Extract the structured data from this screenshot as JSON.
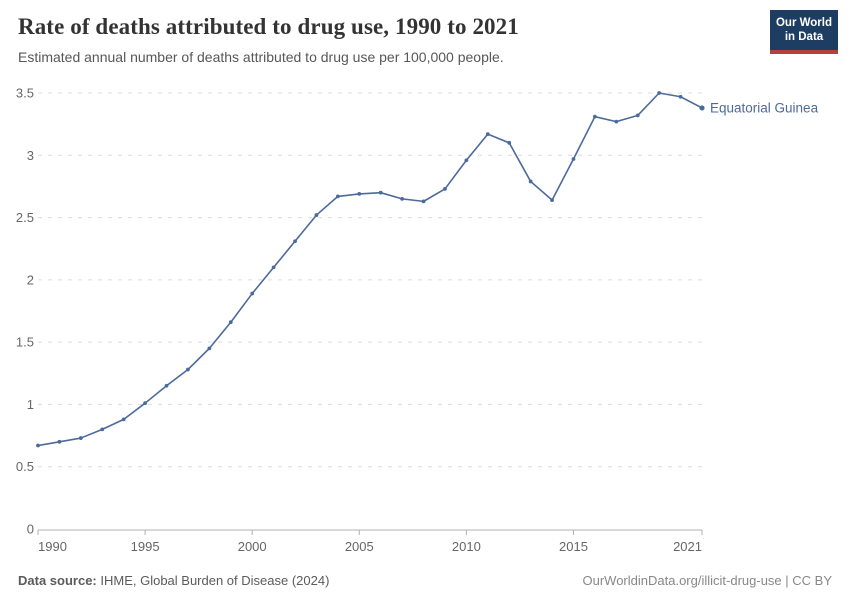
{
  "header": {
    "title": "Rate of deaths attributed to drug use, 1990 to 2021",
    "subtitle": "Estimated annual number of deaths attributed to drug use per 100,000 people.",
    "logo": {
      "line1": "Our World",
      "line2": "in Data",
      "bg_color": "#1d3d63",
      "accent_color": "#b5403c"
    }
  },
  "chart_data": {
    "type": "line",
    "title": "Rate of deaths attributed to drug use, 1990 to 2021",
    "xlabel": "",
    "ylabel": "",
    "xlim": [
      1990,
      2021
    ],
    "ylim": [
      0,
      3.5
    ],
    "x_ticks": [
      1990,
      1995,
      2000,
      2005,
      2010,
      2015,
      2021
    ],
    "y_ticks": [
      0,
      0.5,
      1,
      1.5,
      2,
      2.5,
      3,
      3.5
    ],
    "grid": "horizontal-dashed",
    "legend_position": "end-of-line-label",
    "x": [
      1990,
      1991,
      1992,
      1993,
      1994,
      1995,
      1996,
      1997,
      1998,
      1999,
      2000,
      2001,
      2002,
      2003,
      2004,
      2005,
      2006,
      2007,
      2008,
      2009,
      2010,
      2011,
      2012,
      2013,
      2014,
      2015,
      2016,
      2017,
      2018,
      2019,
      2020,
      2021
    ],
    "series": [
      {
        "name": "Equatorial Guinea",
        "color": "#4C6A9C",
        "values": [
          0.67,
          0.7,
          0.73,
          0.8,
          0.88,
          1.01,
          1.15,
          1.28,
          1.45,
          1.66,
          1.89,
          2.1,
          2.31,
          2.52,
          2.67,
          2.69,
          2.7,
          2.65,
          2.63,
          2.73,
          2.96,
          3.17,
          3.1,
          2.79,
          2.64,
          2.97,
          3.31,
          3.27,
          3.32,
          3.5,
          3.47,
          3.38
        ]
      }
    ],
    "axis_color": "#b0b0b0",
    "grid_color": "#dcdcdc",
    "tick_label_color": "#666666"
  },
  "footer": {
    "source_label": "Data source:",
    "source_text": " IHME, Global Burden of Disease (2024)",
    "attribution": "OurWorldinData.org/illicit-drug-use | CC BY"
  }
}
